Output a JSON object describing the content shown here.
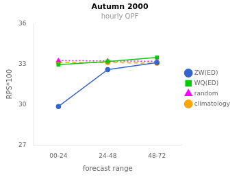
{
  "chart_data": {
    "type": "line",
    "title": "Autumn 2000",
    "subtitle": "hourly QPF",
    "x_label": "forecast range",
    "y_label": "RPS*100",
    "categories": [
      "00-24",
      "24-48",
      "48-72"
    ],
    "series": [
      {
        "name": "ZW(ED)",
        "color": "#3366CC",
        "marker": "circle",
        "line_style": "solid",
        "values": [
          29.85,
          32.58,
          33.1
        ]
      },
      {
        "name": "WQ(ED)",
        "color": "#00CC00",
        "marker": "square",
        "line_style": "solid",
        "values": [
          32.95,
          33.18,
          33.48
        ]
      },
      {
        "name": "random",
        "color": "#FF00FF",
        "marker": "triangle",
        "line_style": "dotted",
        "values": [
          33.25,
          33.22,
          33.2
        ]
      },
      {
        "name": "climatology",
        "color": "#FFA500",
        "marker": "circle",
        "line_style": "dashed",
        "values": [
          33.1,
          33.1,
          33.05
        ]
      }
    ],
    "ylim": [
      27,
      36
    ],
    "yticks": [
      27,
      30,
      33,
      36
    ],
    "grid": false,
    "legend": "right"
  }
}
